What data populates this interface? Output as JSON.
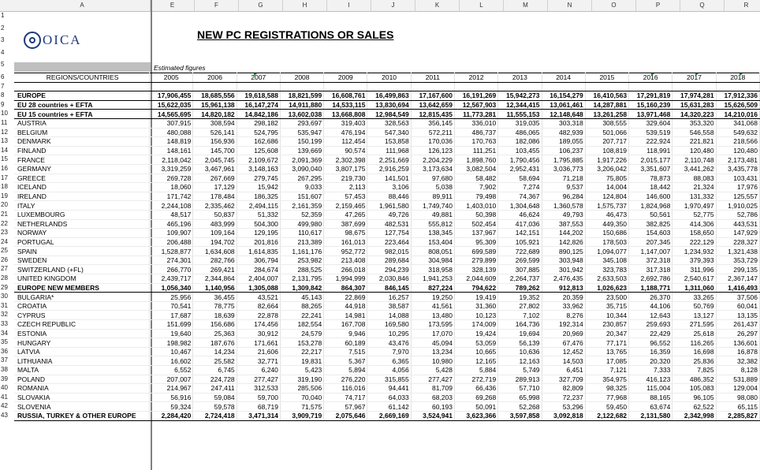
{
  "column_letters": [
    "A",
    "E",
    "F",
    "G",
    "H",
    "I",
    "J",
    "K",
    "L",
    "M",
    "N",
    "O",
    "P",
    "Q",
    "R"
  ],
  "logo_text": "OICA",
  "title": "NEW PC REGISTRATIONS OR SALES",
  "estimated_label": "Estimated figures",
  "header_label": "REGIONS/COUNTRIES",
  "years": [
    "2005",
    "2006",
    "2007",
    "2008",
    "2009",
    "2010",
    "2011",
    "2012",
    "2013",
    "2014",
    "2015",
    "2016",
    "2017",
    "2018"
  ],
  "rows": [
    {
      "n": "8",
      "name": "EUROPE",
      "bold": true,
      "v": [
        "17,906,455",
        "18,685,556",
        "19,618,588",
        "18,821,599",
        "16,608,761",
        "16,499,863",
        "17,167,600",
        "16,191,269",
        "15,942,273",
        "16,154,279",
        "16,410,563",
        "17,291,819",
        "17,974,281",
        "17,912,336"
      ]
    },
    {
      "n": "9",
      "name": "EU 28 countries + EFTA",
      "bold": true,
      "v": [
        "15,622,035",
        "15,961,138",
        "16,147,274",
        "14,911,880",
        "14,533,115",
        "13,830,694",
        "13,642,659",
        "12,567,903",
        "12,344,415",
        "13,061,461",
        "14,287,881",
        "15,160,239",
        "15,631,283",
        "15,626,509"
      ]
    },
    {
      "n": "10",
      "name": "EU 15 countries + EFTA",
      "bold": true,
      "v": [
        "14,565,695",
        "14,820,182",
        "14,842,186",
        "13,602,038",
        "13,668,808",
        "12,984,549",
        "12,815,435",
        "11,773,281",
        "11,555,153",
        "12,148,648",
        "13,261,258",
        "13,971,468",
        "14,320,223",
        "14,210,016"
      ]
    },
    {
      "n": "11",
      "name": "AUSTRIA",
      "v": [
        "307,915",
        "308,594",
        "298,182",
        "293,697",
        "319,403",
        "328,563",
        "356,145",
        "336,010",
        "319,035",
        "303,318",
        "308,555",
        "329,604",
        "353,320",
        "341,068"
      ]
    },
    {
      "n": "12",
      "name": "BELGIUM",
      "v": [
        "480,088",
        "526,141",
        "524,795",
        "535,947",
        "476,194",
        "547,340",
        "572,211",
        "486,737",
        "486,065",
        "482,939",
        "501,066",
        "539,519",
        "546,558",
        "549,632"
      ]
    },
    {
      "n": "13",
      "name": "DENMARK",
      "v": [
        "148,819",
        "156,936",
        "162,686",
        "150,199",
        "112,454",
        "153,858",
        "170,036",
        "170,763",
        "182,086",
        "189,055",
        "207,717",
        "222,924",
        "221,821",
        "218,566"
      ]
    },
    {
      "n": "14",
      "name": "FINLAND",
      "v": [
        "148,161",
        "145,700",
        "125,608",
        "139,669",
        "90,574",
        "111,968",
        "126,123",
        "111,251",
        "103,455",
        "106,237",
        "108,819",
        "118,991",
        "120,480",
        "120,480"
      ]
    },
    {
      "n": "15",
      "name": "FRANCE",
      "v": [
        "2,118,042",
        "2,045,745",
        "2,109,672",
        "2,091,369",
        "2,302,398",
        "2,251,669",
        "2,204,229",
        "1,898,760",
        "1,790,456",
        "1,795,885",
        "1,917,226",
        "2,015,177",
        "2,110,748",
        "2,173,481"
      ]
    },
    {
      "n": "16",
      "name": "GERMANY",
      "v": [
        "3,319,259",
        "3,467,961",
        "3,148,163",
        "3,090,040",
        "3,807,175",
        "2,916,259",
        "3,173,634",
        "3,082,504",
        "2,952,431",
        "3,036,773",
        "3,206,042",
        "3,351,607",
        "3,441,262",
        "3,435,778"
      ]
    },
    {
      "n": "17",
      "name": "GREECE",
      "v": [
        "269,728",
        "267,669",
        "279,745",
        "267,295",
        "219,730",
        "141,501",
        "97,680",
        "58,482",
        "58,694",
        "71,218",
        "75,805",
        "78,873",
        "88,083",
        "103,431"
      ]
    },
    {
      "n": "18",
      "name": "ICELAND",
      "v": [
        "18,060",
        "17,129",
        "15,942",
        "9,033",
        "2,113",
        "3,106",
        "5,038",
        "7,902",
        "7,274",
        "9,537",
        "14,004",
        "18,442",
        "21,324",
        "17,976"
      ]
    },
    {
      "n": "19",
      "name": "IRELAND",
      "v": [
        "171,742",
        "178,484",
        "186,325",
        "151,607",
        "57,453",
        "88,446",
        "89,911",
        "79,498",
        "74,367",
        "96,284",
        "124,804",
        "146,600",
        "131,332",
        "125,557"
      ]
    },
    {
      "n": "20",
      "name": "ITALY",
      "v": [
        "2,244,108",
        "2,335,462",
        "2,494,115",
        "2,161,359",
        "2,159,465",
        "1,961,580",
        "1,749,740",
        "1,403,010",
        "1,304,648",
        "1,360,578",
        "1,575,737",
        "1,824,968",
        "1,970,497",
        "1,910,025"
      ]
    },
    {
      "n": "21",
      "name": "LUXEMBOURG",
      "v": [
        "48,517",
        "50,837",
        "51,332",
        "52,359",
        "47,265",
        "49,726",
        "49,881",
        "50,398",
        "46,624",
        "49,793",
        "46,473",
        "50,561",
        "52,775",
        "52,786"
      ]
    },
    {
      "n": "22",
      "name": "NETHERLANDS",
      "v": [
        "465,196",
        "483,999",
        "504,300",
        "499,980",
        "387,699",
        "482,531",
        "555,812",
        "502,454",
        "417,036",
        "387,553",
        "449,350",
        "382,825",
        "414,306",
        "443,531"
      ]
    },
    {
      "n": "23",
      "name": "NORWAY",
      "v": [
        "109,907",
        "109,164",
        "129,195",
        "110,617",
        "98,675",
        "127,754",
        "138,345",
        "137,967",
        "142,151",
        "144,202",
        "150,686",
        "154,603",
        "158,650",
        "147,929"
      ]
    },
    {
      "n": "24",
      "name": "PORTUGAL",
      "v": [
        "206,488",
        "194,702",
        "201,816",
        "213,389",
        "161,013",
        "223,464",
        "153,404",
        "95,309",
        "105,921",
        "142,826",
        "178,503",
        "207,345",
        "222,129",
        "228,327"
      ]
    },
    {
      "n": "25",
      "name": "SPAIN",
      "v": [
        "1,528,877",
        "1,634,608",
        "1,614,835",
        "1,161,176",
        "952,772",
        "982,015",
        "808,051",
        "699,589",
        "722,689",
        "890,125",
        "1,094,077",
        "1,147,007",
        "1,234,932",
        "1,321,438"
      ]
    },
    {
      "n": "26",
      "name": "SWEDEN",
      "v": [
        "274,301",
        "282,766",
        "306,794",
        "253,982",
        "213,408",
        "289,684",
        "304,984",
        "279,899",
        "269,599",
        "303,948",
        "345,108",
        "372,318",
        "379,393",
        "353,729"
      ]
    },
    {
      "n": "27",
      "name": "SWITZERLAND (+FL)",
      "v": [
        "266,770",
        "269,421",
        "284,674",
        "288,525",
        "266,018",
        "294,239",
        "318,958",
        "328,139",
        "307,885",
        "301,942",
        "323,783",
        "317,318",
        "311,996",
        "299,135"
      ]
    },
    {
      "n": "28",
      "name": "UNITED KINGDOM",
      "v": [
        "2,439,717",
        "2,344,864",
        "2,404,007",
        "2,131,795",
        "1,994,999",
        "2,030,846",
        "1,941,253",
        "2,044,609",
        "2,264,737",
        "2,476,435",
        "2,633,503",
        "2,692,786",
        "2,540,617",
        "2,367,147"
      ]
    },
    {
      "n": "29",
      "name": "EUROPE NEW MEMBERS",
      "bold": true,
      "v": [
        "1,056,340",
        "1,140,956",
        "1,305,088",
        "1,309,842",
        "864,307",
        "846,145",
        "827,224",
        "794,622",
        "789,262",
        "912,813",
        "1,026,623",
        "1,188,771",
        "1,311,060",
        "1,416,493"
      ]
    },
    {
      "n": "30",
      "name": "BULGARIA*",
      "v": [
        "25,956",
        "36,455",
        "43,521",
        "45,143",
        "22,869",
        "16,257",
        "19,250",
        "19,419",
        "19,352",
        "20,359",
        "23,500",
        "26,370",
        "33,265",
        "37,506"
      ]
    },
    {
      "n": "31",
      "name": "CROATIA",
      "v": [
        "70,541",
        "78,775",
        "82,664",
        "88,265",
        "44,918",
        "38,587",
        "41,561",
        "31,360",
        "27,802",
        "33,962",
        "35,715",
        "44,106",
        "50,769",
        "60,041"
      ]
    },
    {
      "n": "32",
      "name": "CYPRUS",
      "v": [
        "17,687",
        "18,639",
        "22,878",
        "22,241",
        "14,981",
        "14,088",
        "13,480",
        "10,123",
        "7,102",
        "8,276",
        "10,344",
        "12,643",
        "13,127",
        "13,135"
      ]
    },
    {
      "n": "33",
      "name": "CZECH REPUBLIC",
      "v": [
        "151,699",
        "156,686",
        "174,456",
        "182,554",
        "167,708",
        "169,580",
        "173,595",
        "174,009",
        "164,736",
        "192,314",
        "230,857",
        "259,693",
        "271,595",
        "261,437"
      ]
    },
    {
      "n": "34",
      "name": "ESTONIA",
      "v": [
        "19,640",
        "25,363",
        "30,912",
        "24,579",
        "9,946",
        "10,295",
        "17,070",
        "19,424",
        "19,694",
        "20,969",
        "20,347",
        "22,429",
        "25,618",
        "26,297"
      ]
    },
    {
      "n": "35",
      "name": "HUNGARY",
      "v": [
        "198,982",
        "187,676",
        "171,661",
        "153,278",
        "60,189",
        "43,476",
        "45,094",
        "53,059",
        "56,139",
        "67,476",
        "77,171",
        "96,552",
        "116,265",
        "136,601"
      ]
    },
    {
      "n": "36",
      "name": "LATVIA",
      "v": [
        "10,467",
        "14,234",
        "21,606",
        "22,217",
        "7,515",
        "7,970",
        "13,234",
        "10,665",
        "10,636",
        "12,452",
        "13,765",
        "16,359",
        "16,698",
        "16,878"
      ]
    },
    {
      "n": "37",
      "name": "LITHUANIA",
      "v": [
        "16,602",
        "25,582",
        "32,771",
        "19,831",
        "5,367",
        "6,365",
        "10,980",
        "12,165",
        "12,163",
        "14,503",
        "17,085",
        "20,320",
        "25,836",
        "32,382"
      ]
    },
    {
      "n": "38",
      "name": "MALTA",
      "v": [
        "6,552",
        "6,745",
        "6,240",
        "5,423",
        "5,894",
        "4,056",
        "5,428",
        "5,884",
        "5,749",
        "6,451",
        "7,121",
        "7,333",
        "7,825",
        "8,128"
      ]
    },
    {
      "n": "39",
      "name": "POLAND",
      "v": [
        "207,007",
        "224,728",
        "277,427",
        "319,190",
        "276,220",
        "315,855",
        "277,427",
        "272,719",
        "289,913",
        "327,709",
        "354,975",
        "416,123",
        "486,352",
        "531,889"
      ]
    },
    {
      "n": "40",
      "name": "ROMANIA",
      "v": [
        "214,967",
        "247,411",
        "312,533",
        "285,506",
        "116,016",
        "94,441",
        "81,709",
        "66,436",
        "57,710",
        "82,809",
        "98,325",
        "115,004",
        "105,083",
        "129,004"
      ]
    },
    {
      "n": "41",
      "name": "SLOVAKIA",
      "v": [
        "56,916",
        "59,084",
        "59,700",
        "70,040",
        "74,717",
        "64,033",
        "68,203",
        "69,268",
        "65,998",
        "72,237",
        "77,968",
        "88,165",
        "96,105",
        "98,080"
      ]
    },
    {
      "n": "42",
      "name": "SLOVENIA",
      "v": [
        "59,324",
        "59,578",
        "68,719",
        "71,575",
        "57,967",
        "61,142",
        "60,193",
        "50,091",
        "52,268",
        "53,296",
        "59,450",
        "63,674",
        "62,522",
        "65,115"
      ]
    },
    {
      "n": "43",
      "name": "RUSSIA, TURKEY & OTHER EUROPE",
      "bold": true,
      "v": [
        "2,284,420",
        "2,724,418",
        "3,471,314",
        "3,909,719",
        "2,075,646",
        "2,669,169",
        "3,524,941",
        "3,623,366",
        "3,597,858",
        "3,092,818",
        "2,122,682",
        "2,131,580",
        "2,342,998",
        "2,285,827"
      ]
    }
  ]
}
